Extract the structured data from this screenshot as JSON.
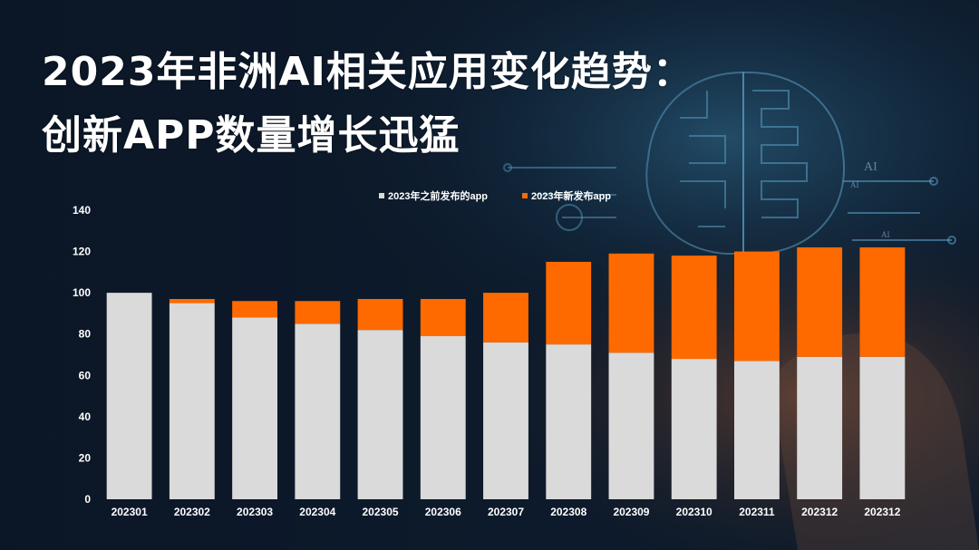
{
  "title": {
    "line1": "2023年非洲AI相关应用变化趋势：",
    "line2": "创新APP数量增长迅猛"
  },
  "colors": {
    "background": "#0b1626",
    "before_2023": "#dadada",
    "new_2023": "#ff6a00",
    "text": "#ffffff"
  },
  "background_art": {
    "icon": "brain-circuit-icon",
    "labels": [
      "AI",
      "AI",
      "AI"
    ]
  },
  "chart_data": {
    "type": "bar",
    "stacked": true,
    "categories": [
      "202301",
      "202302",
      "202303",
      "202304",
      "202305",
      "202306",
      "202307",
      "202308",
      "202309",
      "202310",
      "202311",
      "202312",
      "202312"
    ],
    "series": [
      {
        "name": "2023年之前发布的app",
        "values": [
          100,
          95,
          88,
          85,
          82,
          79,
          76,
          75,
          71,
          68,
          67,
          69,
          69
        ]
      },
      {
        "name": "2023年新发布app",
        "values": [
          0,
          2,
          8,
          11,
          15,
          18,
          24,
          40,
          48,
          50,
          53,
          53,
          53
        ]
      }
    ],
    "yticks": [
      0,
      20,
      40,
      60,
      80,
      100,
      120,
      140
    ],
    "ylim": [
      0,
      140
    ],
    "legend_position": "top-center",
    "grid": false
  }
}
